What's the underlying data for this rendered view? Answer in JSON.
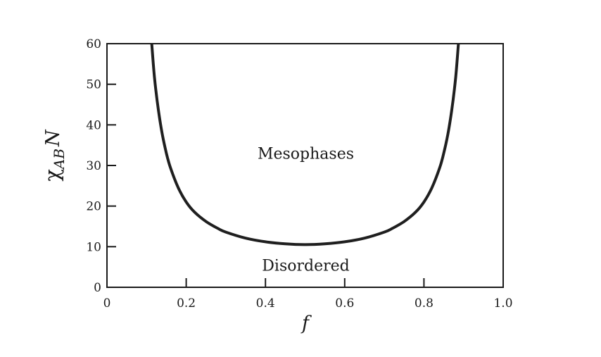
{
  "chart_data": {
    "type": "line",
    "title": "",
    "xlabel": "f",
    "ylabel": {
      "symbol": "χ",
      "subscript": "AB",
      "suffix": "N"
    },
    "xlim": [
      0,
      1.0
    ],
    "ylim": [
      0,
      60
    ],
    "x_ticks": [
      0,
      0.2,
      0.4,
      0.6,
      0.8,
      1.0
    ],
    "x_tick_labels": [
      "0",
      "0.2",
      "0.4",
      "0.6",
      "0.8",
      "1.0"
    ],
    "y_ticks": [
      0,
      10,
      20,
      30,
      40,
      50,
      60
    ],
    "y_tick_labels": [
      "0",
      "10",
      "20",
      "30",
      "40",
      "50",
      "60"
    ],
    "grid": false,
    "legend": false,
    "line_color": "#1f1f1f",
    "series": [
      {
        "x": [
          0.113,
          0.12,
          0.13,
          0.14,
          0.15,
          0.16,
          0.18,
          0.2,
          0.22,
          0.25,
          0.28,
          0.3,
          0.35,
          0.4,
          0.45,
          0.5,
          0.55,
          0.6,
          0.65,
          0.7,
          0.72,
          0.75,
          0.78,
          0.8,
          0.82,
          0.84,
          0.85,
          0.86,
          0.87,
          0.88,
          0.887
        ],
        "y": [
          60,
          51.5,
          43.5,
          37.5,
          33.0,
          29.5,
          24.5,
          21.0,
          18.6,
          16.2,
          14.5,
          13.6,
          12.1,
          11.2,
          10.7,
          10.5,
          10.7,
          11.2,
          12.1,
          13.6,
          14.5,
          16.2,
          18.6,
          21.0,
          24.5,
          29.5,
          33.0,
          37.5,
          43.5,
          51.5,
          60
        ]
      }
    ],
    "annotations": [
      {
        "text": "Mesophases",
        "x": 0.5,
        "y": 33
      },
      {
        "text": "Disordered",
        "x": 0.5,
        "y": 5.5
      }
    ]
  }
}
